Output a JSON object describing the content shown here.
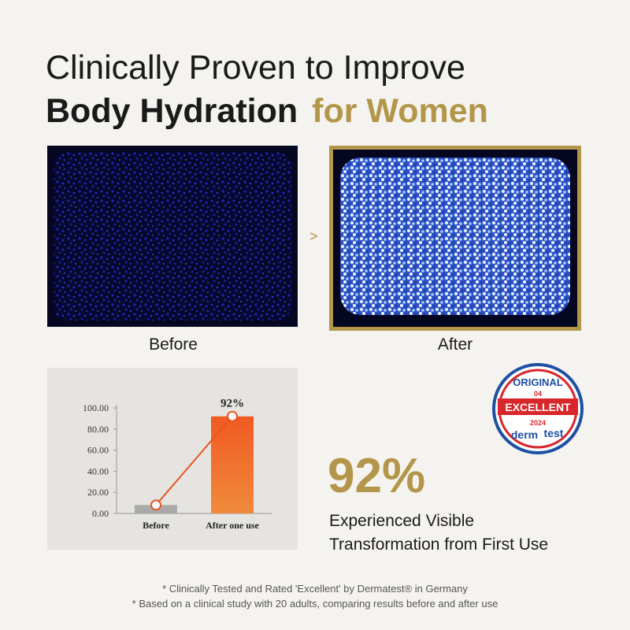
{
  "header": {
    "line1": "Clinically Proven to Improve",
    "line2_dark": "Body Hydration",
    "line2_gold": "for Women"
  },
  "images": {
    "before_caption": "Before",
    "after_caption": "After"
  },
  "chart_data": {
    "type": "bar",
    "categories": [
      "Before",
      "After one use"
    ],
    "values": [
      8,
      92
    ],
    "value_labels": [
      null,
      "92%"
    ],
    "colors": [
      "#a9a9a9",
      "#ee6529"
    ],
    "line_color": "#e8541e",
    "ylim": [
      0,
      100
    ],
    "yticks": [
      {
        "value": 0,
        "label": "0.00"
      },
      {
        "value": 20,
        "label": "20.00"
      },
      {
        "value": 40,
        "label": "40.00"
      },
      {
        "value": 60,
        "label": "60.00"
      },
      {
        "value": 80,
        "label": "80.00"
      },
      {
        "value": 100,
        "label": "100.00"
      }
    ]
  },
  "badge": {
    "top": "ORIGINAL",
    "number": "04",
    "rating": "EXCELLENT",
    "year": "2024",
    "brand1": "derm",
    "brand2": "test"
  },
  "stat": {
    "value": "92%",
    "line1": "Experienced Visible",
    "line2": "Transformation from First Use"
  },
  "footnotes": [
    "* Clinically Tested and Rated 'Excellent' by Dermatest® in Germany",
    "* Based on a clinical study with 20 adults, comparing results before and after use"
  ]
}
